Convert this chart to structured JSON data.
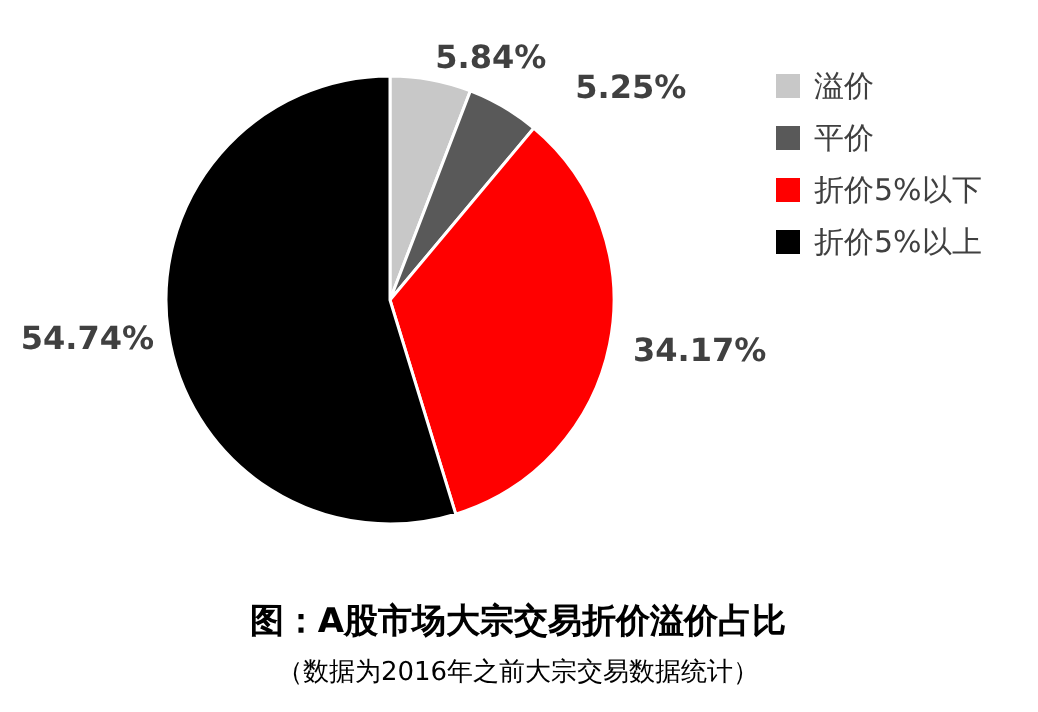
{
  "chart_data": {
    "type": "pie",
    "title": "图：A股市场大宗交易折价溢价占比",
    "subtitle": "（数据为2016年之前大宗交易数据统计）",
    "categories": [
      "溢价",
      "平价",
      "折价5%以下",
      "折价5%以上"
    ],
    "values": [
      5.84,
      5.25,
      34.17,
      54.74
    ],
    "colors": [
      "#c8c8c8",
      "#595959",
      "#ff0000",
      "#000000"
    ],
    "value_labels": [
      "5.84%",
      "5.25%",
      "34.17%",
      "54.74%"
    ],
    "legend": "right"
  }
}
